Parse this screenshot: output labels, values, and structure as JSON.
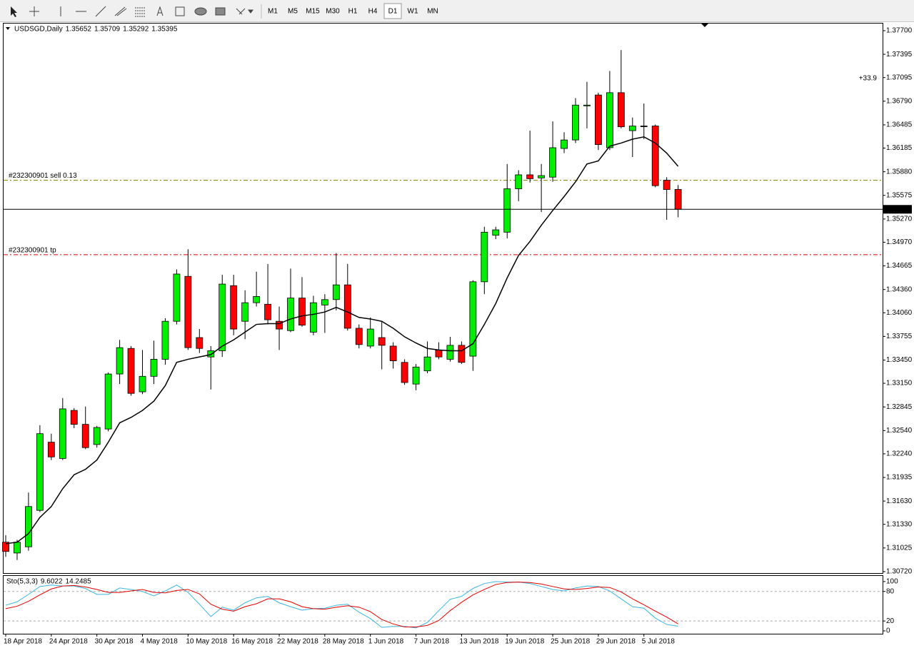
{
  "toolbar": {
    "timeframes": [
      "M1",
      "M5",
      "M15",
      "M30",
      "H1",
      "H4",
      "D1",
      "W1",
      "MN"
    ],
    "active_timeframe": "D1"
  },
  "chart_data": [
    {
      "type": "candlestick",
      "title": "USDSGD,Daily",
      "categories": [
        "18 Apr 2018",
        null,
        null,
        null,
        "24 Apr 2018",
        null,
        null,
        null,
        "30 Apr 2018",
        null,
        null,
        null,
        "4 May 2018",
        null,
        null,
        null,
        "10 May 2018",
        null,
        null,
        null,
        "16 May 2018",
        null,
        null,
        null,
        "22 May 2018",
        null,
        null,
        null,
        "28 May 2018",
        null,
        null,
        null,
        "1 Jun 2018",
        null,
        null,
        null,
        "7 Jun 2018",
        null,
        null,
        null,
        "13 Jun 2018",
        null,
        null,
        null,
        "19 Jun 2018",
        null,
        null,
        null,
        "25 Jun 2018",
        null,
        null,
        null,
        "29 Jun 2018",
        null,
        null,
        null,
        "5 Jul 2018",
        null,
        null,
        null
      ],
      "open": [
        1.311,
        1.3096,
        1.3104,
        1.3151,
        1.3239,
        1.3218,
        1.328,
        1.3262,
        1.3236,
        1.3256,
        1.3327,
        1.336,
        1.3304,
        1.3324,
        1.3346,
        1.3395,
        1.3453,
        1.3374,
        1.3349,
        1.3357,
        1.3441,
        1.3395,
        1.3419,
        1.3417,
        1.3395,
        1.3383,
        1.3425,
        1.3381,
        1.3416,
        1.3423,
        1.3442,
        1.3386,
        1.3363,
        1.3374,
        1.3363,
        1.3342,
        1.3314,
        1.3331,
        1.3358,
        1.3346,
        1.3364,
        1.335,
        1.3446,
        1.3506,
        1.351,
        1.3566,
        1.3584,
        1.358,
        1.3581,
        1.3618,
        1.3629,
        1.3673,
        1.3687,
        1.3619,
        1.369,
        1.3641,
        1.3647,
        1.3647,
        1.3577,
        1.35652
      ],
      "high": [
        1.3119,
        1.3113,
        1.3174,
        1.3261,
        1.325,
        1.3296,
        1.3283,
        1.3285,
        1.326,
        1.3329,
        1.3371,
        1.3363,
        1.3358,
        1.337,
        1.3399,
        1.3462,
        1.3488,
        1.3385,
        1.3363,
        1.3455,
        1.3455,
        1.3435,
        1.3459,
        1.3469,
        1.3414,
        1.3463,
        1.3452,
        1.3428,
        1.343,
        1.3483,
        1.3469,
        1.3391,
        1.34,
        1.3395,
        1.3368,
        1.3346,
        1.334,
        1.3369,
        1.3368,
        1.3375,
        1.3369,
        1.3448,
        1.3517,
        1.3517,
        1.3598,
        1.359,
        1.3641,
        1.3598,
        1.3653,
        1.3639,
        1.3683,
        1.3704,
        1.369,
        1.3718,
        1.3745,
        1.3658,
        1.3676,
        1.3649,
        1.3581,
        1.35709
      ],
      "low": [
        1.3091,
        1.3087,
        1.3099,
        1.3149,
        1.3216,
        1.3216,
        1.3257,
        1.323,
        1.3232,
        1.3253,
        1.3314,
        1.3299,
        1.3301,
        1.3314,
        1.3339,
        1.3391,
        1.3358,
        1.3354,
        1.3307,
        1.3349,
        1.3377,
        1.3372,
        1.3414,
        1.3391,
        1.3358,
        1.3381,
        1.3388,
        1.3377,
        1.338,
        1.3409,
        1.3383,
        1.336,
        1.336,
        1.3333,
        1.3334,
        1.3313,
        1.3306,
        1.3328,
        1.3346,
        1.3343,
        1.334,
        1.3331,
        1.343,
        1.3501,
        1.3502,
        1.355,
        1.3574,
        1.3536,
        1.3575,
        1.3612,
        1.3625,
        1.3644,
        1.3616,
        1.3616,
        1.3644,
        1.3607,
        1.363,
        1.3568,
        1.3526,
        1.35292
      ],
      "close": [
        1.3098,
        1.311,
        1.3156,
        1.325,
        1.322,
        1.3282,
        1.3262,
        1.3232,
        1.3258,
        1.3327,
        1.3361,
        1.3302,
        1.3324,
        1.3346,
        1.3395,
        1.3456,
        1.3361,
        1.336,
        1.3357,
        1.3443,
        1.3385,
        1.3419,
        1.3427,
        1.3397,
        1.3385,
        1.3425,
        1.339,
        1.3419,
        1.3423,
        1.3442,
        1.3386,
        1.3365,
        1.3385,
        1.3364,
        1.3344,
        1.3316,
        1.3336,
        1.3349,
        1.3349,
        1.3364,
        1.3342,
        1.3446,
        1.351,
        1.3513,
        1.3566,
        1.3584,
        1.3579,
        1.3583,
        1.3619,
        1.3629,
        1.3674,
        1.3674,
        1.3623,
        1.369,
        1.3646,
        1.3647,
        1.3647,
        1.357,
        1.3565,
        1.35395
      ],
      "up_color": "#00ee00",
      "down_color": "#ff0000",
      "overlays": [
        {
          "color": "#000000",
          "values": [
            1.3108,
            1.311,
            1.3121,
            1.3142,
            1.3156,
            1.3179,
            1.3197,
            1.3204,
            1.3216,
            1.3239,
            1.3264,
            1.3271,
            1.328,
            1.3292,
            1.3312,
            1.3342,
            1.3346,
            1.3349,
            1.3352,
            1.3363,
            1.3371,
            1.3381,
            1.3391,
            1.3392,
            1.3392,
            1.3398,
            1.3402,
            1.3404,
            1.3407,
            1.3413,
            1.3407,
            1.34,
            1.3398,
            1.3395,
            1.3386,
            1.3375,
            1.3367,
            1.336,
            1.3358,
            1.3357,
            1.3357,
            1.3366,
            1.3391,
            1.3418,
            1.3451,
            1.348,
            1.3498,
            1.3519,
            1.3538,
            1.3556,
            1.3575,
            1.3598,
            1.3602,
            1.3621,
            1.3625,
            1.363,
            1.3633,
            1.3625,
            1.3612,
            1.3595
          ]
        }
      ],
      "ylim": [
        1.30692,
        1.37792
      ],
      "yticks": [
        {
          "value": 1.377,
          "label": "1.37700"
        },
        1.37395,
        1.37095,
        {
          "value": 1.3679,
          "label": "1.36790"
        },
        1.36485,
        1.36185,
        {
          "value": 1.3588,
          "label": "1.35880"
        },
        1.35575,
        {
          "value": 1.3527,
          "label": "1.35270"
        },
        {
          "value": 1.3497,
          "label": "1.34970"
        },
        1.34665,
        {
          "value": 1.3436,
          "label": "1.34360"
        },
        {
          "value": 1.3406,
          "label": "1.34060"
        },
        1.33755,
        {
          "value": 1.3345,
          "label": "1.33450"
        },
        {
          "value": 1.3315,
          "label": "1.33150"
        },
        1.32845,
        {
          "value": 1.3254,
          "label": "1.32540"
        },
        {
          "value": 1.3224,
          "label": "1.32240"
        },
        1.31935,
        {
          "value": 1.3163,
          "label": "1.31630"
        },
        {
          "value": 1.3133,
          "label": "1.31330"
        },
        1.31025,
        {
          "value": 1.3072,
          "label": "1.30720"
        }
      ],
      "orders": [
        {
          "label": "#232300901 sell 0.13",
          "price": 1.3577,
          "color": "#808000"
        },
        {
          "label": "#232300901 tp",
          "price": 1.3481,
          "color": "#e00000"
        }
      ],
      "profit": "+33.9"
    },
    {
      "type": "line",
      "title": "Sto(5,3,3)",
      "series": [
        {
          "color": "#3cb4dc",
          "values": [
            52,
            59,
            74,
            90,
            93,
            91,
            91,
            86,
            74,
            74,
            87,
            84,
            80,
            71,
            81,
            93,
            78,
            54,
            29,
            48,
            42,
            57,
            67,
            70,
            57,
            49,
            42,
            45,
            46,
            52,
            54,
            38,
            25,
            7,
            9,
            9,
            6,
            17,
            41,
            64,
            70,
            86,
            96,
            100,
            99,
            99,
            96,
            90,
            84,
            81,
            87,
            91,
            90,
            81,
            65,
            49,
            46,
            26,
            13,
            9.6022
          ]
        },
        {
          "color": "#e00000",
          "values": [
            45,
            50,
            60,
            73,
            85,
            91,
            92,
            89,
            84,
            78,
            78,
            81,
            84,
            78,
            77,
            82,
            84,
            75,
            54,
            44,
            40,
            49,
            55,
            65,
            65,
            59,
            49,
            45,
            44,
            48,
            51,
            48,
            39,
            23,
            14,
            8,
            8,
            11,
            21,
            41,
            58,
            73,
            84,
            94,
            98,
            99,
            98,
            95,
            90,
            85,
            84,
            86,
            89,
            88,
            79,
            65,
            53,
            40,
            28,
            14.2485
          ]
        }
      ],
      "ylim": [
        -5.8,
        110
      ],
      "yticks": [
        100,
        80,
        20,
        0
      ],
      "grid_ticks": [
        80,
        20
      ]
    }
  ]
}
